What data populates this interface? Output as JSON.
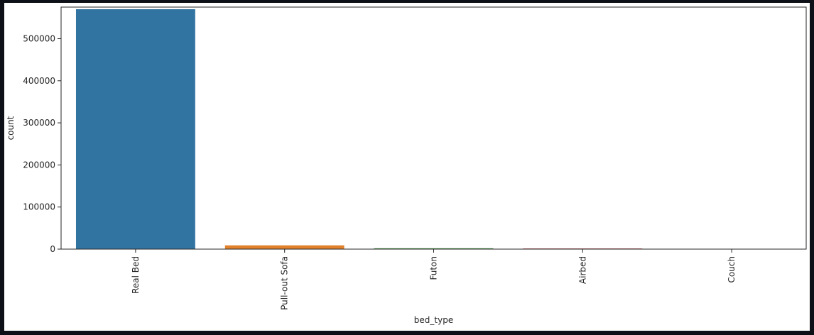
{
  "chart_data": {
    "type": "bar",
    "xlabel": "bed_type",
    "ylabel": "count",
    "categories": [
      "Real Bed",
      "Pull-out Sofa",
      "Futon",
      "Airbed",
      "Couch"
    ],
    "values": [
      570000,
      9000,
      2000,
      1500,
      400
    ],
    "colors": [
      "#3274a1",
      "#e1812c",
      "#3a923a",
      "#c03d3e",
      "#9372b2"
    ],
    "ylim": [
      0,
      575000
    ],
    "yticks": [
      0,
      100000,
      200000,
      300000,
      400000,
      500000
    ],
    "ytick_labels": [
      "0",
      "100000",
      "200000",
      "300000",
      "400000",
      "500000"
    ],
    "grid": false,
    "legend": "none"
  }
}
